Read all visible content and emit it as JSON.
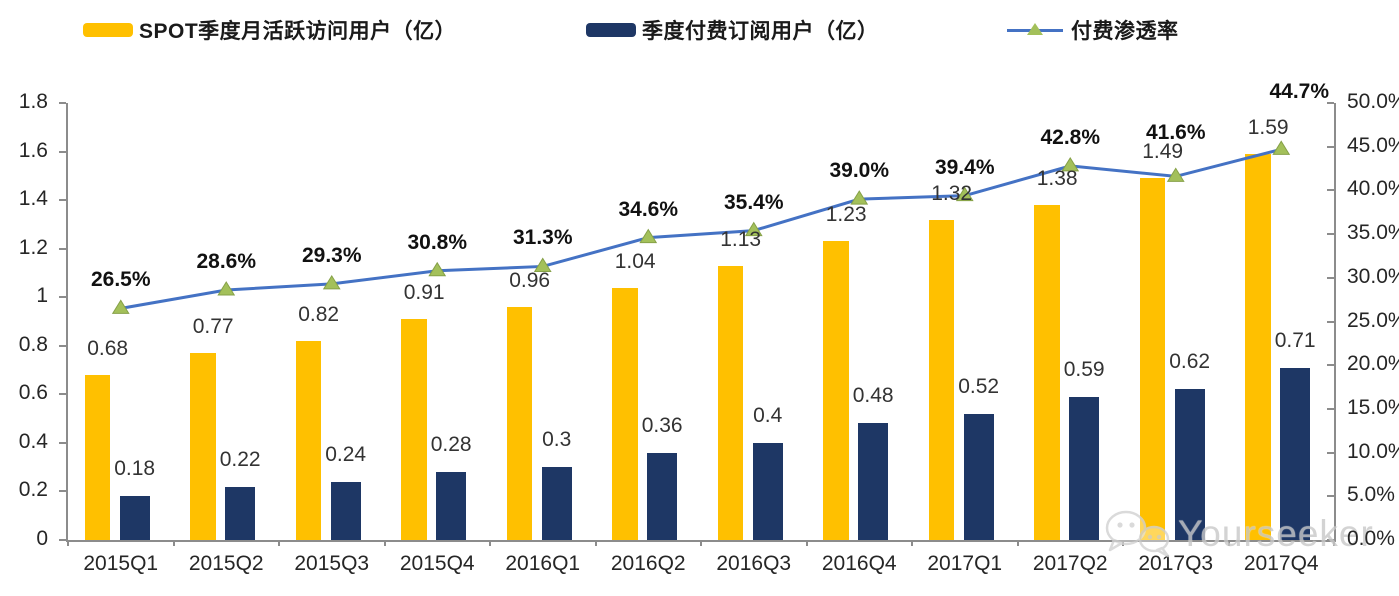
{
  "legend": {
    "items": [
      {
        "label": "SPOT季度月活跃访问用户（亿）",
        "color": "#FFC000",
        "type": "bar"
      },
      {
        "label": "季度付费订阅用户（亿）",
        "color": "#1E3765",
        "type": "bar"
      },
      {
        "label": "付费渗透率",
        "color": "#4472C4",
        "marker_color": "#A3C05A",
        "type": "line"
      }
    ]
  },
  "chart_data": {
    "type": "bar+line",
    "categories": [
      "2015Q1",
      "2015Q2",
      "2015Q3",
      "2015Q4",
      "2016Q1",
      "2016Q2",
      "2016Q3",
      "2016Q4",
      "2017Q1",
      "2017Q2",
      "2017Q3",
      "2017Q4"
    ],
    "series": [
      {
        "name": "SPOT季度月活跃访问用户（亿）",
        "type": "bar",
        "axis": "left",
        "color": "#FFC000",
        "values": [
          0.68,
          0.77,
          0.82,
          0.91,
          0.96,
          1.04,
          1.13,
          1.23,
          1.32,
          1.38,
          1.49,
          1.59
        ],
        "labels": [
          "0.68",
          "0.77",
          "0.82",
          "0.91",
          "0.96",
          "1.04",
          "1.13",
          "1.23",
          "1.32",
          "1.38",
          "1.49",
          "1.59"
        ]
      },
      {
        "name": "季度付费订阅用户（亿）",
        "type": "bar",
        "axis": "left",
        "color": "#1E3765",
        "values": [
          0.18,
          0.22,
          0.24,
          0.28,
          0.3,
          0.36,
          0.4,
          0.48,
          0.52,
          0.59,
          0.62,
          0.71
        ],
        "labels": [
          "0.18",
          "0.22",
          "0.24",
          "0.28",
          "0.3",
          "0.36",
          "0.4",
          "0.48",
          "0.52",
          "0.59",
          "0.62",
          "0.71"
        ]
      },
      {
        "name": "付费渗透率",
        "type": "line",
        "axis": "right",
        "color": "#4472C4",
        "marker": "triangle",
        "marker_color": "#A3C05A",
        "values": [
          26.5,
          28.6,
          29.3,
          30.8,
          31.3,
          34.6,
          35.4,
          39.0,
          39.4,
          42.8,
          41.6,
          44.7
        ],
        "labels": [
          "26.5%",
          "28.6%",
          "29.3%",
          "30.8%",
          "31.3%",
          "34.6%",
          "35.4%",
          "39.0%",
          "39.4%",
          "42.8%",
          "41.6%",
          "44.7%"
        ],
        "label_dx": [
          0,
          0,
          0,
          0,
          0,
          0,
          0,
          0,
          0,
          0,
          0,
          18
        ],
        "label_dy": [
          0,
          0,
          0,
          0,
          0,
          0,
          0,
          0,
          0,
          0,
          -15,
          -29
        ]
      }
    ],
    "left_axis": {
      "min": 0,
      "max": 1.8,
      "tick_labels": [
        "1.8",
        "1.6",
        "1.4",
        "1.2",
        "1",
        "0.8",
        "0.6",
        "0.4",
        "0.2",
        "0"
      ]
    },
    "right_axis": {
      "min": 0,
      "max": 50,
      "tick_labels": [
        "50.0%",
        "45.0%",
        "40.0%",
        "35.0%",
        "30.0%",
        "25.0%",
        "20.0%",
        "15.0%",
        "10.0%",
        "5.0%",
        "0.0%"
      ]
    },
    "grid": false,
    "legend_position": "top"
  },
  "watermark": {
    "text": "Yourseeker",
    "icon": "wechat-icon"
  }
}
